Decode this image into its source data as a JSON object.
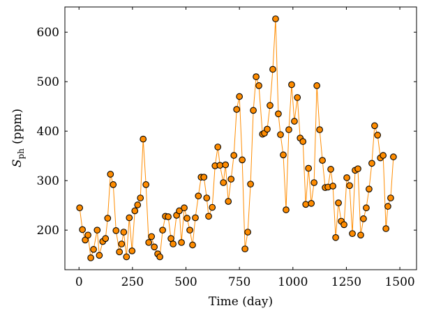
{
  "chart_data": {
    "type": "scatter",
    "xlabel": "Time (day)",
    "ylabel": {
      "symbol": "S",
      "subscript": "ph",
      "unit": "(ppm)"
    },
    "x": [
      3,
      16,
      29,
      42,
      55,
      68,
      85,
      95,
      111,
      124,
      134,
      147,
      160,
      173,
      189,
      199,
      209,
      222,
      235,
      248,
      261,
      274,
      287,
      300,
      313,
      326,
      339,
      352,
      368,
      378,
      391,
      404,
      417,
      430,
      440,
      456,
      469,
      479,
      492,
      505,
      518,
      531,
      544,
      558,
      571,
      584,
      597,
      606,
      623,
      636,
      649,
      659,
      675,
      685,
      698,
      711,
      724,
      737,
      750,
      763,
      776,
      789,
      802,
      815,
      828,
      841,
      858,
      867,
      880,
      893,
      906,
      919,
      932,
      942,
      955,
      968,
      981,
      994,
      1007,
      1021,
      1034,
      1047,
      1060,
      1073,
      1086,
      1099,
      1112,
      1125,
      1138,
      1151,
      1164,
      1177,
      1187,
      1200,
      1213,
      1226,
      1239,
      1252,
      1265,
      1278,
      1291,
      1304,
      1317,
      1330,
      1343,
      1356,
      1369,
      1382,
      1396,
      1409,
      1422,
      1435,
      1444,
      1457,
      1470
    ],
    "values": [
      245,
      201,
      180,
      190,
      144,
      161,
      200,
      149,
      177,
      183,
      224,
      313,
      292,
      199,
      156,
      172,
      196,
      146,
      225,
      158,
      239,
      251,
      265,
      384,
      292,
      175,
      187,
      166,
      152,
      146,
      200,
      228,
      227,
      183,
      172,
      230,
      239,
      175,
      245,
      224,
      200,
      170,
      225,
      269,
      307,
      307,
      265,
      228,
      246,
      330,
      368,
      331,
      296,
      332,
      258,
      303,
      351,
      444,
      470,
      342,
      162,
      196,
      293,
      442,
      510,
      492,
      394,
      396,
      404,
      452,
      525,
      627,
      435,
      393,
      352,
      241,
      403,
      494,
      420,
      468,
      386,
      379,
      252,
      325,
      254,
      296,
      492,
      403,
      341,
      286,
      287,
      323,
      289,
      185,
      255,
      218,
      211,
      306,
      290,
      193,
      321,
      324,
      190,
      223,
      245,
      283,
      335,
      411,
      392,
      346,
      351,
      203,
      248,
      265,
      348
    ],
    "color": "#ff8c00",
    "line_color": "#ff8c00",
    "edge_color": "#000000",
    "xlim": [
      -66,
      1578
    ],
    "ylim": [
      120,
      651
    ],
    "xticks": [
      0,
      250,
      500,
      750,
      1000,
      1250,
      1500
    ],
    "yticks": [
      200,
      300,
      400,
      500,
      600
    ],
    "grid": false
  }
}
